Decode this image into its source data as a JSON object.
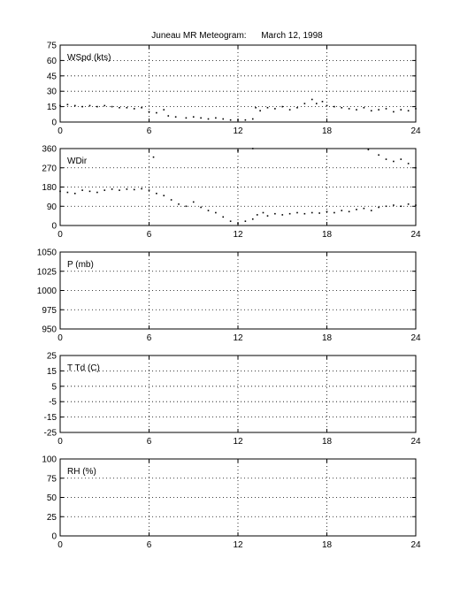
{
  "title": "Juneau MR Meteogram:      March 12, 1998",
  "chart_data": [
    {
      "type": "scatter",
      "label": "WSpd (kts)",
      "x_ticks": [
        "0",
        "6",
        "12",
        "18",
        "24"
      ],
      "xlim": [
        0,
        24
      ],
      "ylim": [
        0,
        75
      ],
      "y_ticks": [
        "0",
        "15",
        "30",
        "45",
        "60",
        "75"
      ],
      "grid": true,
      "series": [
        {
          "values": [
            [
              0.0,
              16
            ],
            [
              0.5,
              17
            ],
            [
              1.0,
              16
            ],
            [
              1.5,
              15
            ],
            [
              2.0,
              16
            ],
            [
              2.5,
              15
            ],
            [
              3.0,
              16
            ],
            [
              3.5,
              15
            ],
            [
              4.0,
              14
            ],
            [
              4.5,
              14
            ],
            [
              5.0,
              13
            ],
            [
              5.5,
              14
            ],
            [
              6.0,
              10
            ],
            [
              6.5,
              9
            ],
            [
              7.0,
              12
            ],
            [
              7.3,
              6
            ],
            [
              7.8,
              5
            ],
            [
              8.5,
              4
            ],
            [
              9.0,
              5
            ],
            [
              9.5,
              4
            ],
            [
              10.0,
              3
            ],
            [
              10.5,
              4
            ],
            [
              11.0,
              3
            ],
            [
              11.5,
              2
            ],
            [
              12.0,
              2
            ],
            [
              12.5,
              2
            ],
            [
              13.0,
              3
            ],
            [
              13.2,
              14
            ],
            [
              13.5,
              11
            ],
            [
              14.0,
              14
            ],
            [
              14.5,
              13
            ],
            [
              15.0,
              15
            ],
            [
              15.5,
              12
            ],
            [
              16.0,
              14
            ],
            [
              16.5,
              18
            ],
            [
              17.0,
              22
            ],
            [
              17.3,
              18
            ],
            [
              17.7,
              20
            ],
            [
              18.0,
              16
            ],
            [
              18.5,
              15
            ],
            [
              19.0,
              14
            ],
            [
              19.5,
              13
            ],
            [
              20.0,
              12
            ],
            [
              20.5,
              14
            ],
            [
              21.0,
              11
            ],
            [
              21.5,
              12
            ],
            [
              22.0,
              13
            ],
            [
              22.5,
              10
            ],
            [
              23.0,
              12
            ],
            [
              23.5,
              11
            ],
            [
              24.0,
              13
            ]
          ]
        }
      ]
    },
    {
      "type": "scatter",
      "label": "WDir",
      "x_ticks": [
        "0",
        "6",
        "12",
        "18",
        "24"
      ],
      "xlim": [
        0,
        24
      ],
      "ylim": [
        0,
        360
      ],
      "y_ticks": [
        "0",
        "90",
        "180",
        "270",
        "360"
      ],
      "grid": true,
      "series": [
        {
          "values": [
            [
              0.0,
              160
            ],
            [
              0.5,
              155
            ],
            [
              1.0,
              150
            ],
            [
              1.5,
              165
            ],
            [
              2.0,
              160
            ],
            [
              2.5,
              155
            ],
            [
              3.0,
              165
            ],
            [
              3.5,
              170
            ],
            [
              4.0,
              165
            ],
            [
              4.5,
              170
            ],
            [
              5.0,
              168
            ],
            [
              5.5,
              172
            ],
            [
              6.0,
              165
            ],
            [
              6.5,
              150
            ],
            [
              7.0,
              140
            ],
            [
              7.5,
              120
            ],
            [
              8.0,
              100
            ],
            [
              8.5,
              90
            ],
            [
              9.0,
              110
            ],
            [
              9.5,
              85
            ],
            [
              10.0,
              70
            ],
            [
              10.5,
              60
            ],
            [
              11.0,
              40
            ],
            [
              11.5,
              20
            ],
            [
              12.0,
              10
            ],
            [
              12.5,
              20
            ],
            [
              13.0,
              30
            ],
            [
              13.3,
              50
            ],
            [
              13.7,
              60
            ],
            [
              14.0,
              45
            ],
            [
              14.5,
              55
            ],
            [
              15.0,
              50
            ],
            [
              15.5,
              55
            ],
            [
              16.0,
              60
            ],
            [
              16.5,
              55
            ],
            [
              17.0,
              60
            ],
            [
              17.5,
              58
            ],
            [
              18.0,
              65
            ],
            [
              18.5,
              60
            ],
            [
              19.0,
              70
            ],
            [
              19.5,
              65
            ],
            [
              20.0,
              75
            ],
            [
              20.5,
              80
            ],
            [
              21.0,
              70
            ],
            [
              21.5,
              85
            ],
            [
              22.0,
              90
            ],
            [
              22.5,
              95
            ],
            [
              23.0,
              90
            ],
            [
              23.5,
              100
            ],
            [
              24.0,
              95
            ],
            [
              6.3,
              320
            ],
            [
              12.0,
              350
            ],
            [
              13.0,
              360
            ],
            [
              20.8,
              355
            ],
            [
              21.5,
              330
            ],
            [
              22.0,
              310
            ],
            [
              22.5,
              300
            ],
            [
              23.0,
              310
            ],
            [
              23.5,
              290
            ],
            [
              24.0,
              270
            ]
          ]
        }
      ]
    },
    {
      "type": "scatter",
      "label": "P (mb)",
      "x_ticks": [
        "0",
        "6",
        "12",
        "18",
        "24"
      ],
      "xlim": [
        0,
        24
      ],
      "ylim": [
        950,
        1050
      ],
      "y_ticks": [
        "950",
        "975",
        "1000",
        "1025",
        "1050"
      ],
      "grid": true,
      "series": [
        {
          "values": []
        }
      ]
    },
    {
      "type": "scatter",
      "label": "T Td (C)",
      "x_ticks": [
        "0",
        "6",
        "12",
        "18",
        "24"
      ],
      "xlim": [
        0,
        24
      ],
      "ylim": [
        -25,
        25
      ],
      "y_ticks": [
        "-25",
        "-15",
        "-5",
        "5",
        "15",
        "25"
      ],
      "grid": true,
      "series": [
        {
          "values": []
        }
      ]
    },
    {
      "type": "scatter",
      "label": "RH (%)",
      "x_ticks": [
        "0",
        "6",
        "12",
        "18",
        "24"
      ],
      "xlim": [
        0,
        24
      ],
      "ylim": [
        0,
        100
      ],
      "y_ticks": [
        "0",
        "25",
        "50",
        "75",
        "100"
      ],
      "grid": true,
      "series": [
        {
          "values": []
        }
      ]
    }
  ]
}
